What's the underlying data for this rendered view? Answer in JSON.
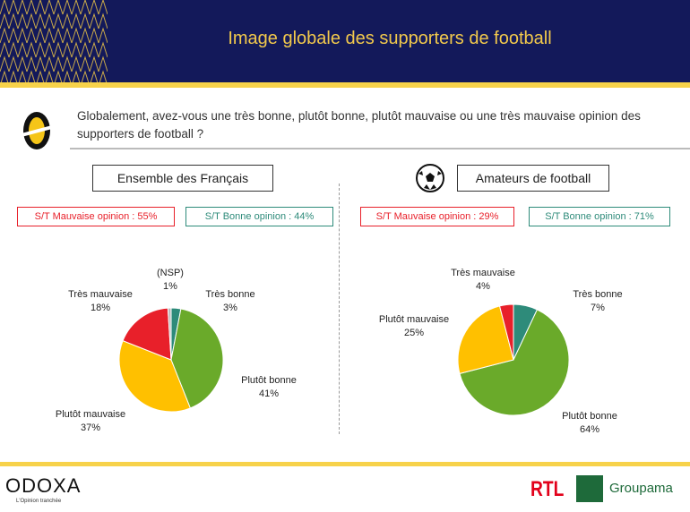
{
  "header": {
    "title": "Image globale des supporters de football"
  },
  "question": "Globalement, avez-vous une très bonne, plutôt bonne, plutôt mauvaise ou une très mauvaise opinion des supporters de football ?",
  "footer": {
    "brand": "ODOXA",
    "tagline": "L'Opinion tranchée",
    "partner1": "RTL",
    "partner2": "Groupama"
  },
  "colors": {
    "tres_bonne": "#2e8b7a",
    "plutot_bonne": "#6aaa2a",
    "plutot_mauvaise": "#ffc000",
    "tres_mauvaise": "#e8202a",
    "nsp": "#bbbbbb"
  },
  "chart_data": [
    {
      "type": "pie",
      "title": "Ensemble des Français",
      "summary": {
        "mauvaise": "S/T Mauvaise opinion : 55%",
        "bonne": "S/T Bonne opinion : 44%"
      },
      "slices": [
        {
          "label": "Très bonne",
          "value": 3,
          "text": "3%"
        },
        {
          "label": "Plutôt bonne",
          "value": 41,
          "text": "41%"
        },
        {
          "label": "Plutôt mauvaise",
          "value": 37,
          "text": "37%"
        },
        {
          "label": "Très mauvaise",
          "value": 18,
          "text": "18%"
        },
        {
          "label": "(NSP)",
          "value": 1,
          "text": "1%"
        }
      ]
    },
    {
      "type": "pie",
      "title": "Amateurs de football",
      "summary": {
        "mauvaise": "S/T Mauvaise opinion : 29%",
        "bonne": "S/T Bonne opinion : 71%"
      },
      "slices": [
        {
          "label": "Très bonne",
          "value": 7,
          "text": "7%"
        },
        {
          "label": "Plutôt bonne",
          "value": 64,
          "text": "64%"
        },
        {
          "label": "Plutôt mauvaise",
          "value": 25,
          "text": "25%"
        },
        {
          "label": "Très mauvaise",
          "value": 4,
          "text": "4%"
        }
      ]
    }
  ]
}
